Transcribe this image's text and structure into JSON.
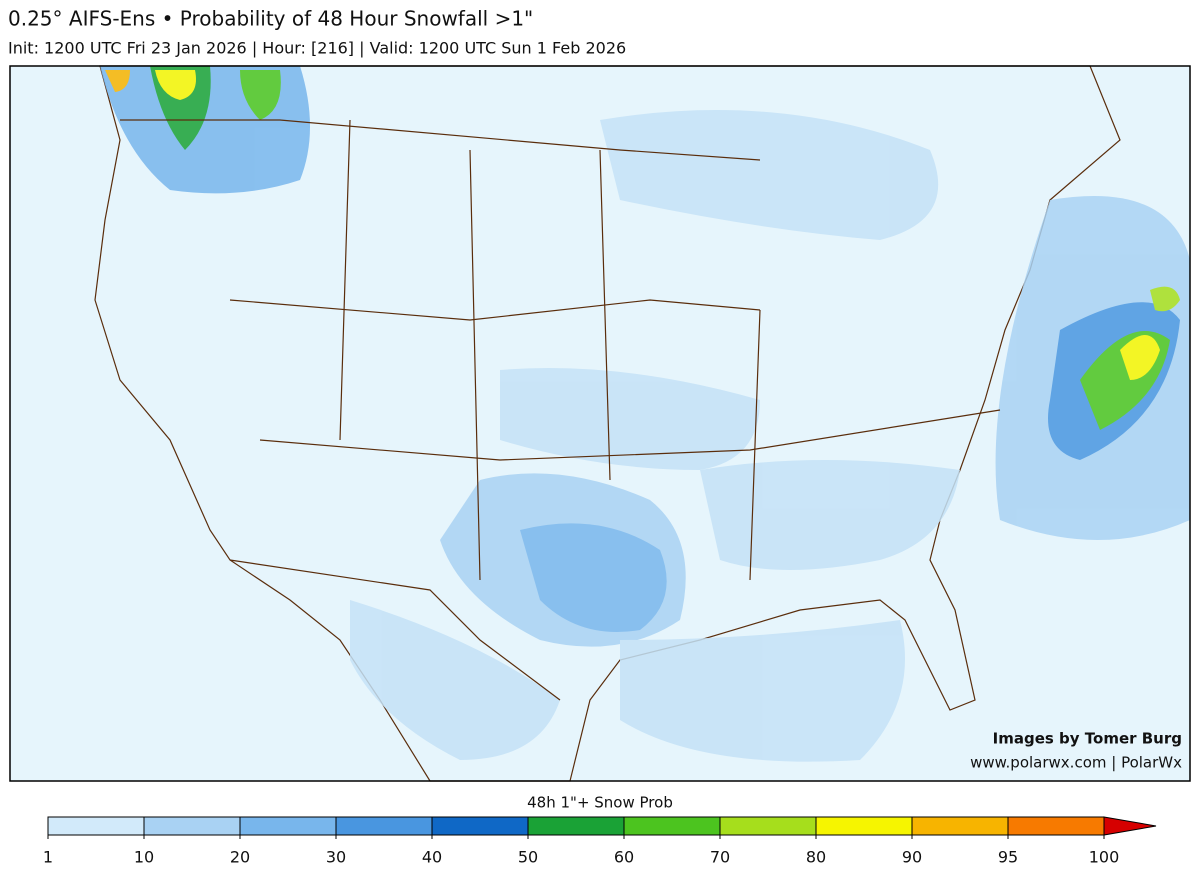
{
  "header": {
    "title": "0.25° AIFS-Ens • Probability of 48 Hour Snowfall >1\"",
    "subtitle": "Init: 1200 UTC Fri 23 Jan 2026 | Hour: [216] | Valid: 1200 UTC Sun 1 Feb 2026"
  },
  "credits": [
    "Images by Tomer Burg",
    "www.polarwx.com | PolarWx"
  ],
  "colorbar": {
    "label": "48h 1\"+ Snow Prob",
    "ticks": [
      1,
      10,
      20,
      30,
      40,
      50,
      60,
      70,
      80,
      90,
      95,
      100
    ],
    "colors": [
      "#d2eafa",
      "#a9d2f3",
      "#78b6ec",
      "#4996e0",
      "#0f68c6",
      "#1aa236",
      "#4cc41f",
      "#a6de1c",
      "#f6f500",
      "#f7b400",
      "#f77a00"
    ],
    "extend_color": "#d60000"
  }
}
